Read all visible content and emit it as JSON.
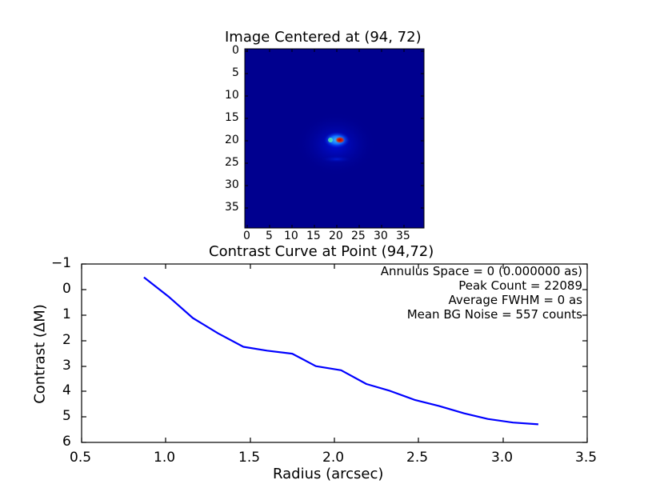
{
  "chart_data": [
    {
      "type": "heatmap",
      "title": "Image Centered at (94, 72)",
      "xlabel": "",
      "ylabel": "",
      "x_ticks": [
        "0",
        "5",
        "10",
        "15",
        "20",
        "25",
        "30",
        "35"
      ],
      "y_ticks": [
        "0",
        "5",
        "10",
        "15",
        "20",
        "25",
        "30",
        "35"
      ],
      "xlim": [
        -0.5,
        39.5
      ],
      "ylim": [
        39.5,
        -0.5
      ],
      "shape": [
        40,
        40
      ],
      "colormap": "jet",
      "peak_location": [
        21,
        20
      ],
      "background_color": "#00008f",
      "description": "Dark blue field with a single compact bright source near pixel (21,20); red core, cyan/light-blue halo, faint blue ring below at row ~24"
    },
    {
      "type": "line",
      "title": "Contrast Curve at Point (94,72)",
      "xlabel": "Radius (arcsec)",
      "ylabel": "Contrast (ΔM)",
      "xlim": [
        0.5,
        3.5
      ],
      "ylim": [
        6,
        -1
      ],
      "y_inverted": true,
      "x_ticks": [
        "0.5",
        "1.0",
        "1.5",
        "2.0",
        "2.5",
        "3.0",
        "3.5"
      ],
      "y_ticks": [
        "−1",
        "0",
        "1",
        "2",
        "3",
        "4",
        "5",
        "6"
      ],
      "grid": false,
      "series": [
        {
          "name": "contrast",
          "color": "#0000ff",
          "x": [
            0.87,
            1.02,
            1.16,
            1.31,
            1.46,
            1.6,
            1.75,
            1.89,
            2.04,
            2.19,
            2.33,
            2.48,
            2.62,
            2.77,
            2.91,
            3.06,
            3.21
          ],
          "y": [
            -0.48,
            0.3,
            1.12,
            1.72,
            2.25,
            2.4,
            2.52,
            3.01,
            3.17,
            3.71,
            3.98,
            4.34,
            4.57,
            4.86,
            5.08,
            5.22,
            5.29
          ]
        }
      ],
      "annotations": [
        "Annulus Space = 0 (0.000000 as)",
        "Peak Count = 22089",
        "Average FWHM = 0 as",
        "Mean BG Noise = 557 counts"
      ]
    }
  ],
  "image_panel": {
    "title": "Image Centered at (94, 72)",
    "x_ticks": [
      "0",
      "5",
      "10",
      "15",
      "20",
      "25",
      "30",
      "35"
    ],
    "y_ticks": [
      "0",
      "5",
      "10",
      "15",
      "20",
      "25",
      "30",
      "35"
    ]
  },
  "contrast_panel": {
    "title": "Contrast Curve at Point (94,72)",
    "xlabel": "Radius (arcsec)",
    "ylabel": "Contrast (ΔM)",
    "x_ticks": [
      "0.5",
      "1.0",
      "1.5",
      "2.0",
      "2.5",
      "3.0",
      "3.5"
    ],
    "y_ticks": [
      "−1",
      "0",
      "1",
      "2",
      "3",
      "4",
      "5",
      "6"
    ],
    "annotations": {
      "annulus": "Annulus Space = 0 (0.000000 as)",
      "peak": "Peak Count = 22089",
      "fwhm": "Average FWHM = 0 as",
      "noise": "Mean BG Noise = 557 counts"
    }
  }
}
